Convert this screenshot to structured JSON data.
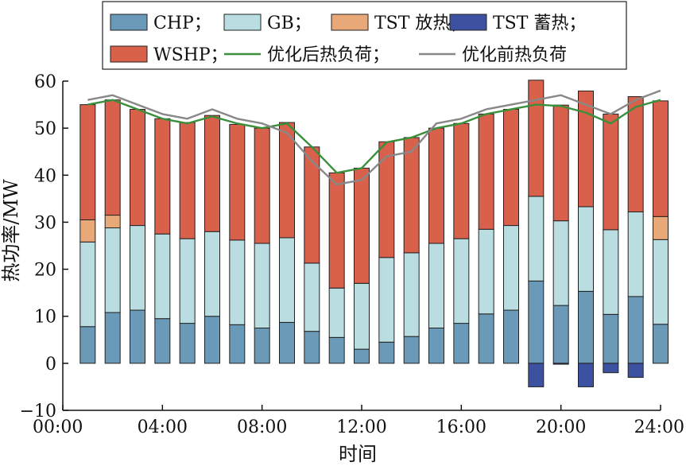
{
  "chart_data": {
    "type": "bar",
    "stacked": true,
    "xlabel": "时间",
    "ylabel": "热功率/MW",
    "xlim": [
      0,
      24
    ],
    "ylim": [
      -10,
      60
    ],
    "xticks": [
      0,
      4,
      8,
      12,
      16,
      20,
      24
    ],
    "xtick_labels": [
      "00:00",
      "04:00",
      "08:00",
      "12:00",
      "16:00",
      "20:00",
      "24:00"
    ],
    "yticks": [
      -10,
      0,
      10,
      20,
      30,
      40,
      50,
      60
    ],
    "ytick_labels": [
      "−10",
      "0",
      "10",
      "20",
      "30",
      "40",
      "50",
      "60"
    ],
    "grid": false,
    "legend_position": "top",
    "x": [
      1,
      2,
      3,
      4,
      5,
      6,
      7,
      8,
      9,
      10,
      11,
      12,
      13,
      14,
      15,
      16,
      17,
      18,
      19,
      20,
      21,
      22,
      23,
      24
    ],
    "series": [
      {
        "name": "CHP；",
        "kind": "bar",
        "color": "#6a9ab8",
        "values": [
          7.8,
          10.8,
          11.3,
          9.5,
          8.5,
          10,
          8.2,
          7.5,
          8.7,
          6.8,
          5.5,
          3,
          4.5,
          5.7,
          7.5,
          8.5,
          10.5,
          11.3,
          17.5,
          12.3,
          15.3,
          10.4,
          14.2,
          8.3
        ]
      },
      {
        "name": "GB；",
        "kind": "bar",
        "color": "#b9dde0",
        "values": [
          18,
          18,
          18,
          18,
          18,
          18,
          18,
          18,
          18,
          14.5,
          10.5,
          14,
          18,
          17.8,
          18,
          18,
          18,
          18,
          18,
          18,
          18,
          18,
          18,
          18
        ]
      },
      {
        "name": "TST 放热；",
        "kind": "bar",
        "color": "#e8a877",
        "values": [
          4.7,
          2.7,
          0,
          0,
          0,
          0,
          0,
          0,
          0,
          0,
          0,
          0,
          0,
          0,
          0,
          0,
          0,
          0,
          0,
          0,
          0,
          0,
          0,
          4.9
        ]
      },
      {
        "name": "TST 蓄热；",
        "kind": "bar",
        "color": "#3d51a1",
        "values": [
          0,
          0,
          0,
          0,
          0,
          0,
          0,
          0,
          0,
          0,
          0,
          0,
          0,
          0,
          0,
          0,
          0,
          0,
          -5,
          -0.2,
          -5,
          -2,
          -3,
          0
        ]
      },
      {
        "name": "WSHP；",
        "kind": "bar",
        "color": "#d9604a",
        "values": [
          24.5,
          24.5,
          24.7,
          24.5,
          24.7,
          24.7,
          24.6,
          24.5,
          24.5,
          24.7,
          24.5,
          24.5,
          24.6,
          24.5,
          24.5,
          24.5,
          24.5,
          24.7,
          24.7,
          24.6,
          24.6,
          24.6,
          24.5,
          24.6
        ]
      },
      {
        "name": "优化后热负荷；",
        "kind": "line",
        "color": "#3a8f3a",
        "values": [
          55,
          56,
          54,
          52,
          51,
          52.5,
          51,
          50,
          51,
          46,
          40.5,
          41.5,
          47,
          48,
          50,
          51,
          53,
          54,
          55,
          54.7,
          53.3,
          51,
          54.5,
          56
        ]
      },
      {
        "name": "优化前热负荷",
        "kind": "line",
        "color": "#888888",
        "values": [
          56,
          57,
          55,
          53,
          52,
          54,
          52,
          51,
          49,
          43,
          38,
          39,
          44,
          45,
          51,
          52,
          54,
          55,
          56,
          57,
          55,
          53,
          56,
          58
        ]
      }
    ]
  }
}
